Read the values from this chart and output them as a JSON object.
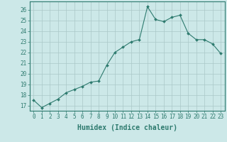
{
  "x": [
    0,
    1,
    2,
    3,
    4,
    5,
    6,
    7,
    8,
    9,
    10,
    11,
    12,
    13,
    14,
    15,
    16,
    17,
    18,
    19,
    20,
    21,
    22,
    23
  ],
  "y": [
    17.5,
    16.8,
    17.2,
    17.6,
    18.2,
    18.5,
    18.8,
    19.2,
    19.3,
    20.8,
    22.0,
    22.5,
    23.0,
    23.2,
    26.3,
    25.1,
    24.9,
    25.3,
    25.5,
    23.8,
    23.2,
    23.2,
    22.8,
    21.9
  ],
  "line_color": "#2d7a6e",
  "marker": "D",
  "markersize": 2.0,
  "linewidth": 0.8,
  "xlabel": "Humidex (Indice chaleur)",
  "xlabel_fontsize": 7,
  "xlim": [
    -0.5,
    23.5
  ],
  "ylim": [
    16.5,
    26.8
  ],
  "yticks": [
    17,
    18,
    19,
    20,
    21,
    22,
    23,
    24,
    25,
    26
  ],
  "xticks": [
    0,
    1,
    2,
    3,
    4,
    5,
    6,
    7,
    8,
    9,
    10,
    11,
    12,
    13,
    14,
    15,
    16,
    17,
    18,
    19,
    20,
    21,
    22,
    23
  ],
  "tick_fontsize": 5.5,
  "bg_color": "#cce8e8",
  "grid_major_color": "#aac8c8",
  "grid_minor_color": "#bbdada",
  "spine_color": "#2d7a6e",
  "tick_color": "#2d7a6e",
  "label_color": "#2d7a6e"
}
